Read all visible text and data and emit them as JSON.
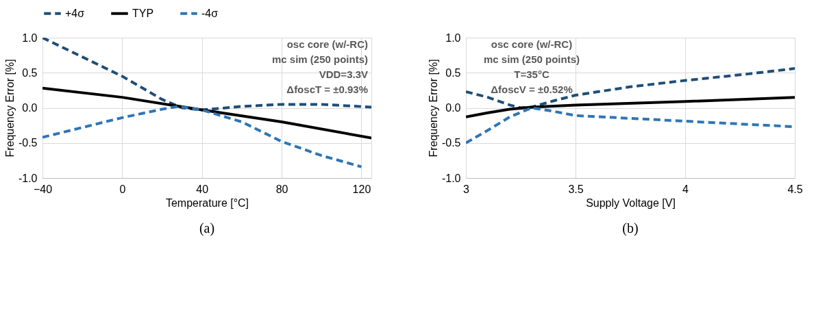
{
  "chart_data": [
    {
      "type": "line",
      "title": "(a)",
      "xlabel": "Temperature [°C]",
      "ylabel": "Frequency Error [%]",
      "xlim": [
        -40,
        125
      ],
      "xticks": [
        -40,
        0,
        40,
        80,
        120
      ],
      "ylim": [
        -1,
        1
      ],
      "yticks": [
        {
          "value": -1,
          "label": "-1.0"
        },
        {
          "value": -0.5,
          "label": "-0.5"
        },
        {
          "value": 0,
          "label": "0.0"
        },
        {
          "value": 0.5,
          "label": "0.5"
        },
        {
          "value": 1,
          "label": "1.0"
        }
      ],
      "grid": true,
      "legend": "top",
      "annotations": [
        "osc core (w/-RC)",
        "mc sim (250 points)",
        "VDD=3.3V",
        "ΔfoscT = ±0.93%"
      ],
      "series": [
        {
          "name": "+4σ",
          "color": "#1f4e79",
          "line_style": "dashed",
          "x": [
            -40,
            0,
            20,
            30,
            40,
            60,
            80,
            100,
            125
          ],
          "values": [
            1.0,
            0.45,
            0.12,
            0.0,
            -0.03,
            0.02,
            0.05,
            0.05,
            0.01
          ]
        },
        {
          "name": "TYP",
          "color": "#000000",
          "line_style": "solid",
          "x": [
            -40,
            0,
            40,
            80,
            125
          ],
          "values": [
            0.28,
            0.15,
            -0.03,
            -0.2,
            -0.43
          ]
        },
        {
          "name": "-4σ",
          "color": "#2e75b6",
          "line_style": "dashed",
          "x": [
            -40,
            0,
            20,
            28,
            40,
            60,
            80,
            100,
            120
          ],
          "values": [
            -0.42,
            -0.14,
            -0.02,
            0.02,
            -0.03,
            -0.2,
            -0.48,
            -0.68,
            -0.84
          ]
        }
      ]
    },
    {
      "type": "line",
      "title": "(b)",
      "xlabel": "Supply Voltage [V]",
      "ylabel": "Frequency Error [%]",
      "xlim": [
        3,
        4.5
      ],
      "xticks": [
        {
          "value": 3,
          "label": "3"
        },
        3.5,
        {
          "value": 4,
          "label": "4"
        },
        4.5
      ],
      "ylim": [
        -1,
        1
      ],
      "yticks": [
        {
          "value": -1,
          "label": "-1.0"
        },
        {
          "value": -0.5,
          "label": "-0.5"
        },
        {
          "value": 0,
          "label": "0.0"
        },
        {
          "value": 0.5,
          "label": "0.5"
        },
        {
          "value": 1,
          "label": "1.0"
        }
      ],
      "grid": true,
      "legend": "top",
      "annotations": [
        "osc core (w/-RC)",
        "mc sim (250 points)",
        "T=35°C",
        "ΔfoscV = ±0.52%"
      ],
      "series": [
        {
          "name": "+4σ",
          "color": "#1f4e79",
          "line_style": "dashed",
          "x": [
            3,
            3.1,
            3.2,
            3.25,
            3.3,
            3.4,
            3.5,
            3.75,
            4,
            4.25,
            4.5
          ],
          "values": [
            0.23,
            0.15,
            0.04,
            0.0,
            0.01,
            0.1,
            0.18,
            0.3,
            0.39,
            0.47,
            0.56
          ]
        },
        {
          "name": "TYP",
          "color": "#000000",
          "line_style": "solid",
          "x": [
            3,
            3.1,
            3.2,
            3.3,
            3.5,
            4,
            4.5
          ],
          "values": [
            -0.13,
            -0.07,
            -0.02,
            0.01,
            0.04,
            0.09,
            0.15
          ]
        },
        {
          "name": "-4σ",
          "color": "#2e75b6",
          "line_style": "dashed",
          "x": [
            3,
            3.1,
            3.2,
            3.3,
            3.4,
            3.5,
            3.75,
            4,
            4.25,
            4.5
          ],
          "values": [
            -0.5,
            -0.32,
            -0.13,
            0.0,
            -0.05,
            -0.11,
            -0.15,
            -0.19,
            -0.23,
            -0.27
          ]
        }
      ]
    }
  ]
}
